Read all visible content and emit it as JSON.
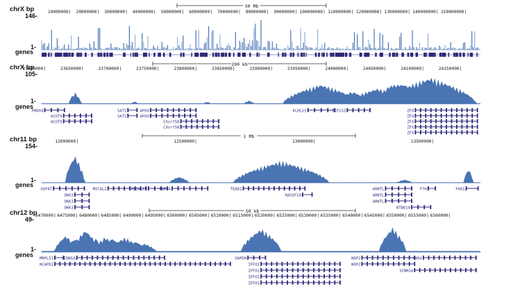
{
  "colors": {
    "signal": "#4a74b2",
    "signal_light": "#8fb0da",
    "gene": "#2c2a7a",
    "axis": "#333333",
    "text": "#111111"
  },
  "chart_data": [
    {
      "type": "area",
      "panel": "chrX-whole",
      "chrom_label": "chrX bp",
      "ymax_label": "146-",
      "ymin_label": "1-",
      "genes_label": "genes",
      "ylim": [
        1,
        146
      ],
      "scale_label": "50 Mb",
      "xlim": [
        1,
        155270560
      ],
      "ticks": [
        "10000000",
        "20000000",
        "30000000",
        "40000000",
        "50000000",
        "60000000",
        "70000000",
        "80000000",
        "90000000",
        "100000000",
        "110000000",
        "120000000",
        "130000000",
        "140000000",
        "150000000"
      ],
      "tick_values": [
        10000000,
        20000000,
        30000000,
        40000000,
        50000000,
        60000000,
        70000000,
        80000000,
        90000000,
        100000000,
        110000000,
        120000000,
        130000000,
        140000000,
        150000000
      ],
      "profile": "dense",
      "genes": []
    },
    {
      "type": "area",
      "panel": "chrX-zoom",
      "chrom_label": "chrX bp",
      "ymax_label": "105-",
      "ymin_label": "1-",
      "genes_label": "genes",
      "ylim": [
        1,
        105
      ],
      "scale_label": "200 kb",
      "xlim": [
        23596000,
        24176000
      ],
      "ticks": [
        "23600000",
        "23650000",
        "23700000",
        "23750000",
        "23800000",
        "23850000",
        "23900000",
        "23950000",
        "24000000",
        "24050000",
        "24100000",
        "24150000"
      ],
      "tick_values": [
        23600000,
        23650000,
        23700000,
        23750000,
        23800000,
        23850000,
        23900000,
        23950000,
        24000000,
        24050000,
        24100000,
        24150000
      ],
      "peaks": [
        {
          "center": 23640000,
          "width": 8000,
          "height": 40
        },
        {
          "center": 23719000,
          "width": 3000,
          "height": 8
        },
        {
          "center": 23815000,
          "width": 4000,
          "height": 6
        },
        {
          "center": 23870000,
          "width": 6000,
          "height": 10
        },
        {
          "center": 23965000,
          "width": 50000,
          "height": 70
        },
        {
          "center": 24040000,
          "width": 40000,
          "height": 55
        },
        {
          "center": 24110000,
          "width": 60000,
          "height": 95
        }
      ],
      "genes": [
        {
          "name": "PRDX4",
          "start": 23600000,
          "end": 23626000
        },
        {
          "name": "ACOT9",
          "start": 23625000,
          "end": 23662000
        },
        {
          "name": "ACOT9",
          "start": 23625000,
          "end": 23662000
        },
        {
          "name": "SAT1",
          "start": 23710000,
          "end": 23722000
        },
        {
          "name": "SAT1",
          "start": 23710000,
          "end": 23722000
        },
        {
          "name": "APOO",
          "start": 23740000,
          "end": 23800000
        },
        {
          "name": "APOO",
          "start": 23740000,
          "end": 23800000
        },
        {
          "name": "CXorf58",
          "start": 23780000,
          "end": 23830000
        },
        {
          "name": "CXorf58",
          "start": 23780000,
          "end": 23830000
        },
        {
          "name": "KLHL15",
          "start": 23948000,
          "end": 23983000
        },
        {
          "name": "EIF2S3",
          "start": 24000000,
          "end": 24030000
        },
        {
          "name": "ZFX",
          "start": 24090000,
          "end": 24172000
        },
        {
          "name": "ZFX",
          "start": 24090000,
          "end": 24172000
        },
        {
          "name": "ZFX",
          "start": 24090000,
          "end": 24172000
        },
        {
          "name": "ZFX",
          "start": 24090000,
          "end": 24172000
        },
        {
          "name": "ZFX",
          "start": 24090000,
          "end": 24172000
        }
      ]
    },
    {
      "type": "area",
      "panel": "chr11",
      "chrom_label": "chr11 bp",
      "ymax_label": "154-",
      "ymin_label": "1-",
      "genes_label": "genes",
      "ylim": [
        1,
        154
      ],
      "scale_label": "1 Mb",
      "xlim": [
        11850000,
        13700000
      ],
      "ticks": [
        "12000000",
        "12500000",
        "13000000",
        "13500000"
      ],
      "tick_values": [
        12000000,
        12500000,
        13000000,
        13500000
      ],
      "peaks": [
        {
          "center": 11990000,
          "width": 40000,
          "height": 120
        },
        {
          "center": 12430000,
          "width": 40000,
          "height": 25
        },
        {
          "center": 12860000,
          "width": 200000,
          "height": 95
        },
        {
          "center": 13380000,
          "width": 30000,
          "height": 12
        },
        {
          "center": 13650000,
          "width": 20000,
          "height": 60
        }
      ],
      "genes": [
        {
          "name": "USP47",
          "start": 11900000,
          "end": 12030000
        },
        {
          "name": "DKK3",
          "start": 11990000,
          "end": 12050000
        },
        {
          "name": "DKK3",
          "start": 11990000,
          "end": 12050000
        },
        {
          "name": "DKK3",
          "start": 11990000,
          "end": 12050000
        },
        {
          "name": "MICAL2",
          "start": 12130000,
          "end": 12290000
        },
        {
          "name": "MICALCL",
          "start": 12300000,
          "end": 12380000
        },
        {
          "name": "PARVA",
          "start": 12400000,
          "end": 12550000
        },
        {
          "name": "TEAD1",
          "start": 12700000,
          "end": 12960000
        },
        {
          "name": "RASSF10",
          "start": 12950000,
          "end": 12990000
        },
        {
          "name": "ARNTL",
          "start": 13300000,
          "end": 13410000
        },
        {
          "name": "ARNTL",
          "start": 13300000,
          "end": 13410000
        },
        {
          "name": "ARNTL",
          "start": 13300000,
          "end": 13410000
        },
        {
          "name": "BTBD10",
          "start": 13410000,
          "end": 13490000
        },
        {
          "name": "FTH",
          "start": 13480000,
          "end": 13510000
        },
        {
          "name": "FAR1",
          "start": 13640000,
          "end": 13690000
        }
      ]
    },
    {
      "type": "area",
      "panel": "chr12",
      "chrom_label": "chr12 bp",
      "ymax_label": "49-",
      "ymin_label": "1-",
      "genes_label": "genes",
      "ylim": [
        1,
        49
      ],
      "scale_label": "50 kb",
      "xlim": [
        6467000,
        6567000
      ],
      "ticks": [
        "6470000",
        "6475000",
        "6480000",
        "6485000",
        "6490000",
        "6495000",
        "6500000",
        "6505000",
        "6510000",
        "6515000",
        "6520000",
        "6525000",
        "6530000",
        "6535000",
        "6540000",
        "6545000",
        "6550000",
        "6555000",
        "6560000"
      ],
      "tick_values": [
        6470000,
        6475000,
        6480000,
        6485000,
        6490000,
        6495000,
        6500000,
        6505000,
        6510000,
        6515000,
        6520000,
        6525000,
        6530000,
        6535000,
        6540000,
        6545000,
        6550000,
        6555000,
        6560000
      ],
      "peaks": [
        {
          "center": 6472500,
          "width": 2500,
          "height": 25
        },
        {
          "center": 6477000,
          "width": 3000,
          "height": 34
        },
        {
          "center": 6481500,
          "width": 2500,
          "height": 23
        },
        {
          "center": 6486000,
          "width": 3500,
          "height": 22
        },
        {
          "center": 6490500,
          "width": 2500,
          "height": 12
        },
        {
          "center": 6517000,
          "width": 4500,
          "height": 36
        },
        {
          "center": 6547000,
          "width": 3000,
          "height": 38
        }
      ],
      "genes": [
        {
          "name": "MRPL51",
          "start": 6470000,
          "end": 6472000
        },
        {
          "name": "NCAPD2",
          "start": 6470000,
          "end": 6510000
        },
        {
          "name": "SCNN1A",
          "start": 6475000,
          "end": 6495000
        },
        {
          "name": "GAPDH",
          "start": 6514000,
          "end": 6518000
        },
        {
          "name": "IFFO1",
          "start": 6517000,
          "end": 6535000
        },
        {
          "name": "IFFO1",
          "start": 6517000,
          "end": 6535000
        },
        {
          "name": "IFFO1",
          "start": 6517000,
          "end": 6535000
        },
        {
          "name": "IFFO1",
          "start": 6517000,
          "end": 6535000
        },
        {
          "name": "NOP2",
          "start": 6540000,
          "end": 6552000
        },
        {
          "name": "NOP2",
          "start": 6540000,
          "end": 6552000
        },
        {
          "name": "CHD4",
          "start": 6554000,
          "end": 6566000
        },
        {
          "name": "SCNN1A",
          "start": 6552000,
          "end": 6566000
        }
      ]
    }
  ]
}
